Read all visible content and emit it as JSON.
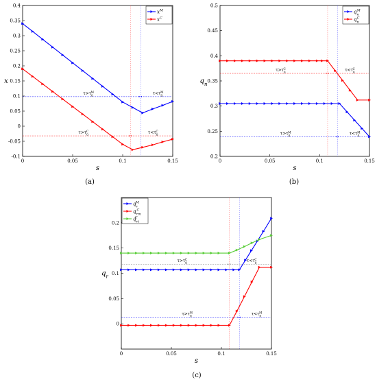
{
  "chart_data": [
    {
      "type": "line",
      "panel_label": "(a)",
      "xlabel": "s",
      "ylabel": "x",
      "xlim": [
        0,
        0.15
      ],
      "ylim": [
        -0.1,
        0.4
      ],
      "xticks": [
        "0",
        "0.05",
        "0.1",
        "0.15"
      ],
      "yticks": [
        "-0.1",
        "-0.05",
        "0",
        "0.05",
        "0.1",
        "0.15",
        "0.2",
        "0.25",
        "0.3",
        "0.35",
        "0.4"
      ],
      "xtick_values": [
        0,
        0.05,
        0.1,
        0.15
      ],
      "ytick_values": [
        -0.1,
        -0.05,
        0,
        0.05,
        0.1,
        0.15,
        0.2,
        0.25,
        0.3,
        0.35,
        0.4
      ],
      "legend_position": "top-right",
      "series": [
        {
          "name": "x^M",
          "base": "x",
          "sup": "M",
          "sub": "",
          "color": "#0000ff",
          "x": [
            0,
            0.01,
            0.02,
            0.03,
            0.04,
            0.05,
            0.06,
            0.07,
            0.08,
            0.09,
            0.1,
            0.11,
            0.12,
            0.13,
            0.14,
            0.15
          ],
          "y": [
            0.34,
            0.314,
            0.288,
            0.262,
            0.236,
            0.21,
            0.184,
            0.158,
            0.132,
            0.106,
            0.08,
            0.062,
            0.044,
            0.057,
            0.069,
            0.082
          ]
        },
        {
          "name": "x^C",
          "base": "x",
          "sup": "C",
          "sub": "",
          "color": "#ff0000",
          "x": [
            0,
            0.01,
            0.02,
            0.03,
            0.04,
            0.05,
            0.06,
            0.07,
            0.08,
            0.09,
            0.1,
            0.11,
            0.12,
            0.13,
            0.14,
            0.15
          ],
          "y": [
            0.19,
            0.165,
            0.14,
            0.115,
            0.09,
            0.065,
            0.04,
            0.015,
            -0.01,
            -0.035,
            -0.06,
            -0.078,
            -0.07,
            -0.062,
            -0.052,
            -0.043
          ]
        }
      ],
      "annotations": [
        {
          "arrow_y": 0.098,
          "span": [
            0,
            0.118
          ],
          "text": "τ>τ",
          "sup": "M",
          "sub": "0",
          "side": "left",
          "color": "#0000ff"
        },
        {
          "arrow_y": 0.098,
          "span": [
            0.118,
            0.15
          ],
          "text": "τ<τ",
          "sup": "M",
          "sub": "0",
          "side": "right",
          "color": "#0000ff"
        },
        {
          "arrow_y": -0.032,
          "span": [
            0,
            0.108
          ],
          "text": "τ>τ",
          "sup": "C",
          "sub": "0",
          "side": "left",
          "color": "#ff0000"
        },
        {
          "arrow_y": -0.032,
          "span": [
            0.108,
            0.15
          ],
          "text": "τ<τ",
          "sup": "C",
          "sub": "0",
          "side": "right",
          "color": "#ff0000"
        }
      ],
      "threshold_x": [
        0.108,
        0.118
      ]
    },
    {
      "type": "line",
      "panel_label": "(b)",
      "xlabel": "s",
      "ylabel": "q_n",
      "ylabel_base": "q",
      "ylabel_sub": "n",
      "xlim": [
        0,
        0.15
      ],
      "ylim": [
        0.2,
        0.5
      ],
      "xticks": [
        "0",
        "0.05",
        "0.1",
        "0.15"
      ],
      "yticks": [
        "0.2",
        "0.25",
        "0.3",
        "0.35",
        "0.4",
        "0.45",
        "0.5"
      ],
      "xtick_values": [
        0,
        0.05,
        0.1,
        0.15
      ],
      "ytick_values": [
        0.2,
        0.25,
        0.3,
        0.35,
        0.4,
        0.45,
        0.5
      ],
      "legend_position": "top-right",
      "series": [
        {
          "name": "q_n^M",
          "base": "q",
          "sup": "M",
          "sub": "n",
          "color": "#0000ff",
          "x": [
            0,
            0.0075,
            0.015,
            0.0225,
            0.03,
            0.0375,
            0.045,
            0.0525,
            0.06,
            0.0675,
            0.075,
            0.0825,
            0.09,
            0.0975,
            0.105,
            0.1125,
            0.12,
            0.1275,
            0.135,
            0.1425,
            0.15
          ],
          "y": [
            0.305,
            0.305,
            0.305,
            0.305,
            0.305,
            0.305,
            0.305,
            0.305,
            0.305,
            0.305,
            0.305,
            0.305,
            0.305,
            0.305,
            0.305,
            0.305,
            0.305,
            0.2885,
            0.272,
            0.2555,
            0.239
          ]
        },
        {
          "name": "q_n^C",
          "base": "q",
          "sup": "C",
          "sub": "n",
          "color": "#ff0000",
          "x": [
            0,
            0.0075,
            0.015,
            0.0225,
            0.03,
            0.0375,
            0.045,
            0.0525,
            0.06,
            0.0675,
            0.075,
            0.0825,
            0.09,
            0.0975,
            0.1025,
            0.108,
            0.1155,
            0.123,
            0.1305,
            0.138,
            0.15
          ],
          "y": [
            0.39,
            0.39,
            0.39,
            0.39,
            0.39,
            0.39,
            0.39,
            0.39,
            0.39,
            0.39,
            0.39,
            0.39,
            0.39,
            0.39,
            0.39,
            0.39,
            0.3705,
            0.351,
            0.3315,
            0.312,
            0.312
          ]
        }
      ],
      "annotations": [
        {
          "arrow_y": 0.365,
          "span": [
            0,
            0.108
          ],
          "text": "τ>τ",
          "sup": "C",
          "sub": "0",
          "side": "left",
          "color": "#ff0000"
        },
        {
          "arrow_y": 0.365,
          "span": [
            0.108,
            0.15
          ],
          "text": "τ<τ",
          "sup": "C",
          "sub": "0",
          "side": "right",
          "color": "#ff0000"
        },
        {
          "arrow_y": 0.239,
          "span": [
            0,
            0.118
          ],
          "text": "τ>τ",
          "sup": "M",
          "sub": "0",
          "side": "left",
          "color": "#0000ff"
        },
        {
          "arrow_y": 0.239,
          "span": [
            0.118,
            0.15
          ],
          "text": "τ<τ",
          "sup": "M",
          "sub": "0",
          "side": "right",
          "color": "#0000ff"
        }
      ],
      "threshold_x": [
        0.108,
        0.118
      ]
    },
    {
      "type": "line",
      "panel_label": "(c)",
      "xlabel": "s",
      "ylabel": "q_r",
      "ylabel_base": "q",
      "ylabel_sub": "r",
      "xlim": [
        0,
        0.15
      ],
      "ylim": [
        -0.05,
        0.25
      ],
      "xticks": [
        "0",
        "0.05",
        "0.1",
        "0.15"
      ],
      "yticks": [
        "0",
        "0.05",
        "0.1",
        "0.15",
        "0.2"
      ],
      "xtick_values": [
        0,
        0.05,
        0.1,
        0.15
      ],
      "ytick_values": [
        0,
        0.05,
        0.1,
        0.15,
        0.2
      ],
      "legend_position": "top-left",
      "series": [
        {
          "name": "q_r^M",
          "base": "q",
          "sup": "M",
          "sub": "r",
          "color": "#0000ff",
          "x": [
            0,
            0.0075,
            0.015,
            0.0225,
            0.03,
            0.0375,
            0.045,
            0.0525,
            0.06,
            0.0675,
            0.075,
            0.0825,
            0.09,
            0.0975,
            0.105,
            0.1125,
            0.118,
            0.124,
            0.13,
            0.136,
            0.142,
            0.15
          ],
          "y": [
            0.107,
            0.107,
            0.107,
            0.107,
            0.107,
            0.107,
            0.107,
            0.107,
            0.107,
            0.107,
            0.107,
            0.107,
            0.107,
            0.107,
            0.107,
            0.107,
            0.107,
            0.126,
            0.145,
            0.164,
            0.183,
            0.209
          ]
        },
        {
          "name": "q_rm^C",
          "base": "q",
          "sup": "C",
          "sub": "rm",
          "color": "#ff0000",
          "x": [
            0,
            0.0075,
            0.015,
            0.0225,
            0.03,
            0.0375,
            0.045,
            0.0525,
            0.06,
            0.0675,
            0.075,
            0.0825,
            0.09,
            0.0975,
            0.108,
            0.1155,
            0.123,
            0.1305,
            0.138,
            0.15
          ],
          "y": [
            -0.003,
            -0.003,
            -0.003,
            -0.003,
            -0.003,
            -0.003,
            -0.003,
            -0.003,
            -0.003,
            -0.003,
            -0.003,
            -0.003,
            -0.003,
            -0.003,
            -0.003,
            0.025,
            0.054,
            0.083,
            0.112,
            0.112
          ]
        },
        {
          "name": "q_rt^C",
          "base": "q",
          "sup": "C",
          "sub": "rt",
          "color": "#55cc33",
          "x": [
            0,
            0.0075,
            0.015,
            0.0225,
            0.03,
            0.0375,
            0.045,
            0.0525,
            0.06,
            0.0675,
            0.075,
            0.0825,
            0.09,
            0.0975,
            0.108,
            0.1155,
            0.123,
            0.1305,
            0.138,
            0.15
          ],
          "y": [
            0.14,
            0.14,
            0.14,
            0.14,
            0.14,
            0.14,
            0.14,
            0.14,
            0.14,
            0.14,
            0.14,
            0.14,
            0.14,
            0.14,
            0.14,
            0.146,
            0.153,
            0.16,
            0.167,
            0.175
          ]
        }
      ],
      "annotations": [
        {
          "arrow_y": 0.118,
          "span": [
            0,
            0.108
          ],
          "text": "τ>τ",
          "sup": "C",
          "sub": "0",
          "side": "left",
          "color": "#888888"
        },
        {
          "arrow_y": 0.118,
          "span": [
            0.108,
            0.15
          ],
          "text": "τ<τ",
          "sup": "C",
          "sub": "0",
          "side": "right",
          "color": "#888888"
        },
        {
          "arrow_y": 0.013,
          "span": [
            0,
            0.118
          ],
          "text": "τ>τ",
          "sup": "M",
          "sub": "0",
          "side": "left",
          "color": "#0000ff"
        },
        {
          "arrow_y": 0.013,
          "span": [
            0.118,
            0.15
          ],
          "text": "τ<τ",
          "sup": "M",
          "sub": "0",
          "side": "right",
          "color": "#0000ff"
        }
      ],
      "threshold_x": [
        0.108,
        0.118
      ]
    }
  ]
}
